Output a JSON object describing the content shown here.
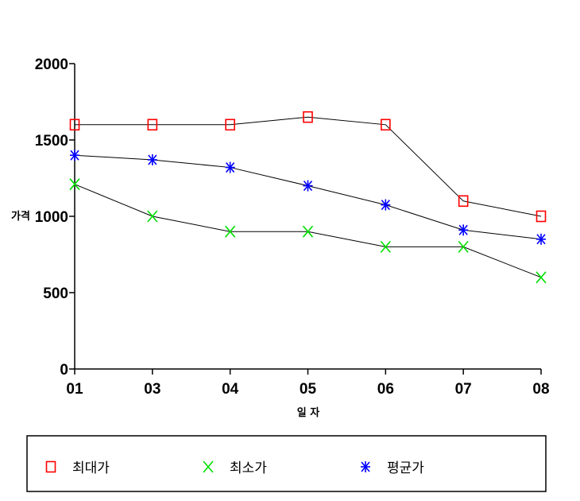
{
  "chart_data": {
    "type": "line",
    "title": "",
    "xlabel": "일 자",
    "ylabel": "가격",
    "categories": [
      "01",
      "03",
      "04",
      "05",
      "06",
      "07",
      "08"
    ],
    "yticks": [
      "0",
      "500",
      "1000",
      "1500",
      "2000"
    ],
    "ylim": [
      0,
      2000
    ],
    "grid": false,
    "legend": "bottom",
    "series": [
      {
        "name": "최대가",
        "marker": "square",
        "color": "#ff0000",
        "values": [
          1600,
          1600,
          1600,
          1650,
          1600,
          1100,
          1000
        ]
      },
      {
        "name": "최소가",
        "marker": "x",
        "color": "#00e000",
        "values": [
          1210,
          1000,
          900,
          900,
          800,
          800,
          600
        ]
      },
      {
        "name": "평균가",
        "marker": "asterisk",
        "color": "#0000ff",
        "values": [
          1400,
          1370,
          1320,
          1200,
          1075,
          910,
          850
        ]
      }
    ]
  }
}
